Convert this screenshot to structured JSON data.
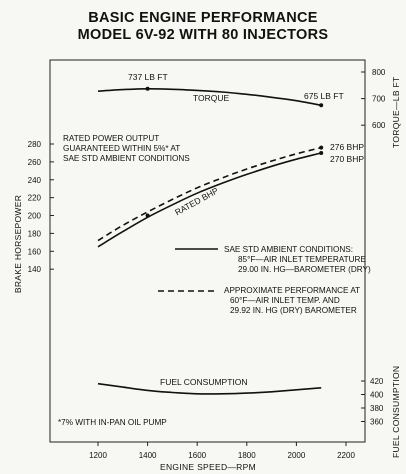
{
  "chart_data": {
    "type": "line",
    "title": "BASIC ENGINE PERFORMANCE",
    "subtitle": "MODEL 6V-92 WITH 80 INJECTORS",
    "xlabel": "ENGINE SPEED—RPM",
    "ylabel": "BRAKE HORSEPOWER",
    "xlim": [
      1100,
      2300
    ],
    "x_ticks": [
      "1200",
      "1400",
      "1600",
      "1800",
      "2000",
      "2200"
    ],
    "bhp_axis": {
      "ylim": [
        130,
        290
      ],
      "ticks": [
        "140",
        "160",
        "180",
        "200",
        "220",
        "240",
        "260",
        "280"
      ]
    },
    "torque_axis": {
      "label": "TORQUE—LB FT",
      "ylim": [
        570,
        830
      ],
      "ticks": [
        "600",
        "700",
        "800"
      ]
    },
    "fuel_axis": {
      "label": "FUEL CONSUMPTION",
      "ylim": [
        355,
        435
      ],
      "ticks": [
        "360",
        "380",
        "400",
        "420"
      ]
    },
    "series": [
      {
        "name": "TORQUE",
        "axis": "torque",
        "style": "solid",
        "x": [
          1200,
          1300,
          1400,
          1500,
          1600,
          1700,
          1800,
          1900,
          2000,
          2100
        ],
        "y": [
          728,
          734,
          737,
          735,
          731,
          725,
          716,
          705,
          692,
          675
        ]
      },
      {
        "name": "RATED BHP",
        "axis": "bhp",
        "style": "solid",
        "x": [
          1200,
          1300,
          1400,
          1500,
          1600,
          1700,
          1800,
          1900,
          2000,
          2100
        ],
        "y": [
          165,
          182,
          198,
          212,
          225,
          236,
          246,
          255,
          263,
          270
        ]
      },
      {
        "name": "RATED BHP (approximate)",
        "axis": "bhp",
        "style": "dashed",
        "x": [
          1200,
          1300,
          1400,
          1500,
          1600,
          1700,
          1800,
          1900,
          2000,
          2100
        ],
        "y": [
          172,
          189,
          204,
          218,
          231,
          242,
          252,
          261,
          269,
          276
        ]
      },
      {
        "name": "FUEL CONSUMPTION",
        "axis": "fuel",
        "style": "solid",
        "x": [
          1200,
          1300,
          1400,
          1500,
          1600,
          1700,
          1800,
          1900,
          2000,
          2100
        ],
        "y": [
          416,
          411,
          406,
          403,
          401,
          401,
          402,
          404,
          407,
          410
        ]
      }
    ],
    "annotations": {
      "torque_peak": "737 LB FT",
      "torque_end": "675 LB FT",
      "torque_label": "TORQUE",
      "bhp_270": "270 BHP",
      "bhp_276": "276 BHP",
      "rated_bhp_label": "RATED BHP",
      "fuel_label": "FUEL CONSUMPTION",
      "rated_note": [
        "RATED POWER OUTPUT",
        "GUARANTEED WITHIN 5%* AT",
        "SAE STD AMBIENT CONDITIONS"
      ],
      "legend_solid": [
        "SAE STD AMBIENT CONDITIONS:",
        "85°F—AIR INLET TEMPERATURE",
        "29.00 IN. HG—BAROMETER (DRY)"
      ],
      "legend_dashed": [
        "APPROXIMATE PERFORMANCE AT",
        "60°F—AIR INLET TEMP. AND",
        "29.92 IN. HG (DRY) BAROMETER"
      ],
      "footnote": "*7% WITH IN-PAN OIL PUMP"
    },
    "grid": false
  }
}
